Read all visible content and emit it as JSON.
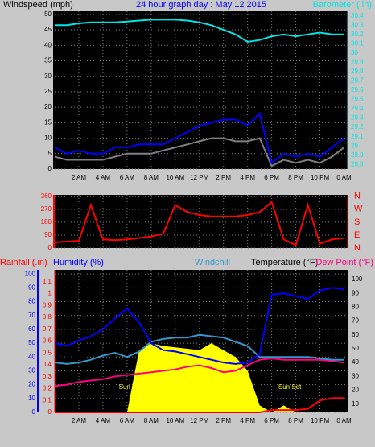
{
  "chart_data": [
    {
      "type": "line",
      "title": "24 hour graph day : May 12 2015",
      "ylabel": "Windspeed (mph)",
      "y2label": "Barometer (.in)",
      "axis_colors": {
        "y": "#000000",
        "y2": "#00e5e5",
        "title": "#0000ff"
      },
      "grid": true,
      "xlim": [
        0,
        24.3
      ],
      "xticks": [
        {
          "value": 2,
          "label": "2 AM"
        },
        {
          "value": 4,
          "label": "4 AM"
        },
        {
          "value": 6,
          "label": "6 AM"
        },
        {
          "value": 8,
          "label": "8 AM"
        },
        {
          "value": 10,
          "label": "10 AM"
        },
        {
          "value": 12,
          "label": "12 PM"
        },
        {
          "value": 14,
          "label": "2 PM"
        },
        {
          "value": 16,
          "label": "4 PM"
        },
        {
          "value": 18,
          "label": "6 PM"
        },
        {
          "value": 20,
          "label": "8 PM"
        },
        {
          "value": 22,
          "label": "10 PM"
        },
        {
          "value": 24,
          "label": "0 AM"
        }
      ],
      "ylim": [
        0,
        51
      ],
      "yticks": [
        0,
        5,
        10,
        15,
        20,
        25,
        30,
        35,
        40,
        45,
        50
      ],
      "y2lim": [
        28.75,
        30.45
      ],
      "y2ticks": [
        28.8,
        28.9,
        29,
        29.1,
        29.2,
        29.3,
        29.4,
        29.5,
        29.6,
        29.7,
        29.8,
        29.9,
        30,
        30.1,
        30.2,
        30.3,
        30.4
      ],
      "x": [
        0,
        1,
        2,
        3,
        4,
        5,
        6,
        7,
        8,
        9,
        10,
        11,
        12,
        13,
        14,
        15,
        16,
        17,
        18,
        19,
        20,
        21,
        22,
        23,
        24
      ],
      "series": [
        {
          "color": "#808080",
          "values": [
            4,
            3,
            3,
            3,
            3,
            4,
            5,
            5,
            5,
            6,
            7,
            8,
            9,
            10,
            10,
            9,
            9,
            10,
            1,
            3,
            2,
            3,
            2,
            4,
            7
          ]
        },
        {
          "color": "#000000",
          "values": [
            10,
            9,
            11,
            10,
            9,
            11,
            12,
            12,
            11,
            14,
            14,
            16,
            20,
            22,
            24,
            26,
            25,
            22,
            8,
            12,
            10,
            10,
            8,
            12,
            15
          ]
        },
        {
          "color": "#0000ff",
          "values": [
            7,
            5,
            6,
            5,
            5,
            7,
            7,
            8,
            8,
            8,
            10,
            12,
            14,
            15,
            16,
            16,
            14,
            18,
            2,
            5,
            4,
            5,
            4,
            7,
            10
          ]
        },
        {
          "color": "#00e5e5",
          "axis": "y2",
          "values": [
            30.3,
            30.3,
            30.32,
            30.33,
            30.33,
            30.33,
            30.34,
            30.35,
            30.36,
            30.36,
            30.36,
            30.35,
            30.33,
            30.3,
            30.25,
            30.2,
            30.12,
            30.14,
            30.18,
            30.2,
            30.18,
            30.2,
            30.22,
            30.2,
            30.2
          ]
        }
      ]
    },
    {
      "type": "line",
      "axis_colors": {
        "y": "#ff0000",
        "y2": "#ff0000"
      },
      "grid": true,
      "xlim": [
        0,
        24.3
      ],
      "xticks": [
        2,
        4,
        6,
        8,
        10,
        12,
        14,
        16,
        18,
        20,
        22,
        24
      ],
      "ylim": [
        0,
        370
      ],
      "yticks": [
        0,
        90,
        180,
        270,
        360
      ],
      "y2lim": [
        0,
        370
      ],
      "y2ticks": [
        {
          "value": 0,
          "label": "N"
        },
        {
          "value": 90,
          "label": "E"
        },
        {
          "value": 180,
          "label": "S"
        },
        {
          "value": 270,
          "label": "W"
        },
        {
          "value": 360,
          "label": "N"
        }
      ],
      "x": [
        0,
        1,
        2,
        3,
        4,
        5,
        6,
        7,
        8,
        9,
        10,
        11,
        12,
        13,
        14,
        15,
        16,
        17,
        18,
        19,
        20,
        21,
        22,
        23,
        24
      ],
      "series": [
        {
          "color": "#ff0000",
          "values": [
            40,
            45,
            50,
            300,
            60,
            55,
            60,
            70,
            80,
            100,
            300,
            250,
            230,
            220,
            220,
            220,
            230,
            250,
            320,
            60,
            20,
            300,
            30,
            60,
            70
          ]
        }
      ]
    },
    {
      "type": "line",
      "y3label": "Rainfall (.in)",
      "ylabel": "Humidity (%)",
      "windchill_label": "Windchill",
      "y2label": "Temperature (°F)",
      "dewpoint_label": "Dew Point (°F)",
      "annotations": [
        {
          "x": 6.4,
          "y": 18,
          "text": "Sun Rise"
        },
        {
          "x": 19.5,
          "y": 18,
          "text": "Sun Set"
        }
      ],
      "axis_colors": {
        "y": "#0000ff",
        "y2": "#000000",
        "y3": "#ff0000",
        "windchill": "#3399cc",
        "dewpoint": "#ff0080",
        "annotation": "#ffff00"
      },
      "grid": true,
      "xlim": [
        0,
        24.3
      ],
      "xticks": [
        {
          "value": 2,
          "label": "2 AM"
        },
        {
          "value": 4,
          "label": "4 AM"
        },
        {
          "value": 6,
          "label": "6 AM"
        },
        {
          "value": 8,
          "label": "8 AM"
        },
        {
          "value": 10,
          "label": "10 AM"
        },
        {
          "value": 12,
          "label": "12 PM"
        },
        {
          "value": 14,
          "label": "2 PM"
        },
        {
          "value": 16,
          "label": "4 PM"
        },
        {
          "value": 18,
          "label": "6 PM"
        },
        {
          "value": 20,
          "label": "8 PM"
        },
        {
          "value": 22,
          "label": "10 PM"
        },
        {
          "value": 24,
          "label": "0 AM"
        }
      ],
      "ylim": [
        0,
        103
      ],
      "yticks": [
        0,
        10,
        20,
        30,
        40,
        50,
        60,
        70,
        80,
        90,
        100
      ],
      "y2lim": [
        4,
        107
      ],
      "y2ticks": [
        10,
        20,
        30,
        40,
        50,
        60,
        70,
        80,
        90,
        100
      ],
      "y3lim": [
        0,
        1.2
      ],
      "y3ticks": [
        0,
        0.1,
        0.2,
        0.3,
        0.4,
        0.5,
        0.6,
        0.7,
        0.8,
        0.9,
        1,
        1.1
      ],
      "x": [
        0,
        1,
        2,
        3,
        4,
        5,
        6,
        7,
        8,
        9,
        10,
        11,
        12,
        13,
        14,
        15,
        16,
        17,
        18,
        19,
        20,
        21,
        22,
        23,
        24
      ],
      "series": [
        {
          "type": "area",
          "color": "#ffff00",
          "values": [
            0,
            0,
            0,
            0,
            0,
            0,
            0,
            45,
            50,
            48,
            47,
            46,
            45,
            50,
            45,
            40,
            30,
            5,
            0,
            5,
            0,
            0,
            0,
            0,
            0
          ]
        },
        {
          "color": "#ff0000",
          "axis": "y3",
          "values": [
            0,
            0,
            0,
            0,
            0,
            0,
            0,
            0,
            0,
            0,
            0,
            0,
            0,
            0,
            0,
            0,
            0,
            0,
            0.02,
            0.02,
            0.02,
            0.03,
            0.1,
            0.12,
            0.12
          ]
        },
        {
          "color": "#ff0080",
          "axis": "y2",
          "values": [
            23,
            24,
            26,
            27,
            28,
            30,
            31,
            32,
            33,
            34,
            35,
            37,
            38,
            36,
            33,
            34,
            38,
            42,
            43,
            42,
            42,
            42,
            42,
            41,
            40
          ]
        },
        {
          "color": "#3399cc",
          "axis": "y2",
          "values": [
            40,
            39,
            40,
            42,
            45,
            47,
            44,
            48,
            55,
            57,
            58,
            58,
            60,
            59,
            58,
            55,
            52,
            44,
            44,
            44,
            44,
            44,
            43,
            42,
            42
          ]
        },
        {
          "color": "#000000",
          "axis": "y2",
          "values": [
            44,
            43,
            44,
            45,
            48,
            50,
            48,
            52,
            58,
            61,
            63,
            64,
            64,
            63,
            62,
            59,
            56,
            48,
            47,
            47,
            47,
            46,
            46,
            45,
            44
          ]
        },
        {
          "color": "#0000ff",
          "values": [
            50,
            48,
            52,
            55,
            60,
            68,
            75,
            65,
            50,
            45,
            44,
            42,
            40,
            38,
            36,
            35,
            36,
            42,
            85,
            86,
            84,
            82,
            88,
            90,
            89
          ]
        }
      ]
    }
  ]
}
